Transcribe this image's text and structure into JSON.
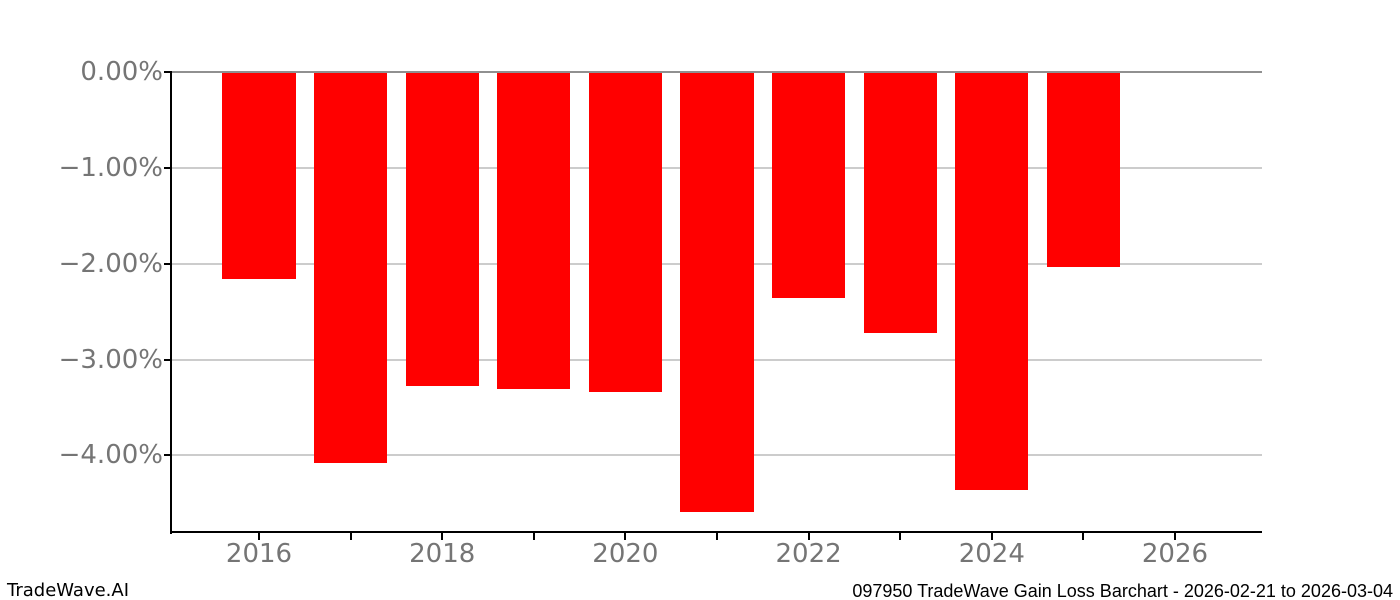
{
  "footer": {
    "brand": "TradeWave.AI",
    "title": "097950 TradeWave Gain Loss Barchart - 2026-02-21 to 2026-03-04"
  },
  "chart_data": {
    "type": "bar",
    "title": "",
    "categories": [
      "2016",
      "2017",
      "2018",
      "2019",
      "2020",
      "2021",
      "2022",
      "2023",
      "2024",
      "2025"
    ],
    "values": [
      -2.16,
      -4.08,
      -3.28,
      -3.31,
      -3.34,
      -4.59,
      -2.36,
      -2.72,
      -4.36,
      -2.03
    ],
    "bar_color": "#ff0000",
    "bar_width_years": 0.8,
    "xlim": [
      2015.05,
      2026.95
    ],
    "ylim": [
      -4.8,
      0
    ],
    "grid": true,
    "gridline_color": "#cccccc",
    "zero_line_color": "#909090",
    "spine_color": "#000000",
    "tick_label_color": "#757575",
    "yticks": [
      {
        "value": 0,
        "label": "0.00%"
      },
      {
        "value": -1,
        "label": "−1.00%"
      },
      {
        "value": -2,
        "label": "−2.00%"
      },
      {
        "value": -3,
        "label": "−3.00%"
      },
      {
        "value": -4,
        "label": "−4.00%"
      }
    ],
    "xticks": [
      {
        "value": 2016,
        "label": "2016"
      },
      {
        "value": 2017,
        "label": ""
      },
      {
        "value": 2018,
        "label": "2018"
      },
      {
        "value": 2019,
        "label": ""
      },
      {
        "value": 2020,
        "label": "2020"
      },
      {
        "value": 2021,
        "label": ""
      },
      {
        "value": 2022,
        "label": "2022"
      },
      {
        "value": 2023,
        "label": ""
      },
      {
        "value": 2024,
        "label": "2024"
      },
      {
        "value": 2025,
        "label": ""
      },
      {
        "value": 2026,
        "label": "2026"
      }
    ],
    "legend": null,
    "xlabel": "",
    "ylabel": ""
  }
}
